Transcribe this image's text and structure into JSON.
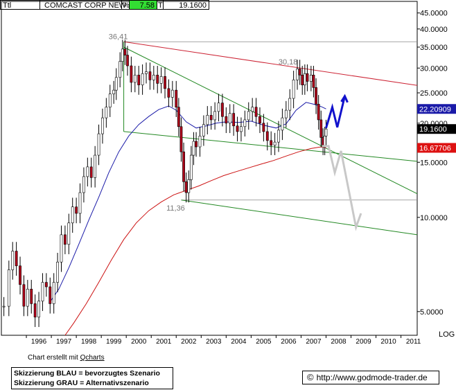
{
  "header": {
    "symbol": "Ttl",
    "name": "COMCAST CORP NEW",
    "pct_label": "%",
    "change": "7.58",
    "t_label": "T",
    "last": "19.1600"
  },
  "credit": {
    "prefix": "Chart erstellt mit ",
    "tool": "Qcharts"
  },
  "legend": {
    "line1": "Skizzierung BLAU = bevorzugtes Szenario",
    "line2": "Skizzierung GRAU = Alternativszenario"
  },
  "footer": {
    "copyright": "©",
    "url": "http://www.godmode-trader.de"
  },
  "colors": {
    "price": "#000000",
    "up_body": "#ffffff",
    "down_body": "#b0001a",
    "ma_short": "#1a1aa8",
    "ma_long": "#cc1111",
    "trend_green": "#228822",
    "resistance_red": "#cc2233",
    "scenario_blue": "#1111cc",
    "scenario_grey": "#c8c8c8",
    "label_ma_short_bg": "#1a1aa8",
    "label_ma_long_bg": "#dd1111",
    "label_last_bg": "#000000"
  },
  "chart_data": {
    "type": "line",
    "scale": "log",
    "ylim": [
      4.2,
      49
    ],
    "xlim": [
      1995.0,
      2011.65
    ],
    "y_ticks": [
      "45.0000",
      "40.0000",
      "35.0000",
      "30.0000",
      "25.0000",
      "20.0000",
      "15.0000",
      "10.0000",
      "5.0000"
    ],
    "y_tick_values": [
      45,
      40,
      35,
      30,
      25,
      20,
      15,
      10,
      5
    ],
    "x_ticks": [
      "1996",
      "1997",
      "1998",
      "1999",
      "2000",
      "2001",
      "2002",
      "2003",
      "2004",
      "2005",
      "2006",
      "2007",
      "2008",
      "2009",
      "2010",
      "2011"
    ],
    "axis_note": "LOG",
    "annotations": [
      {
        "text": "36,41",
        "x": 1999.9,
        "y": 36.41
      },
      {
        "text": "30,18",
        "x": 2006.7,
        "y": 30.18
      },
      {
        "text": "11,36",
        "x": 2002.2,
        "y": 11.36
      }
    ],
    "price_labels": [
      {
        "text": "22.20909",
        "value": 22.20909,
        "series": "ma_short"
      },
      {
        "text": "19.1600",
        "value": 19.16,
        "series": "last"
      },
      {
        "text": "16.67706",
        "value": 16.67706,
        "series": "ma_long"
      }
    ],
    "price": [
      [
        1995.1,
        5.2
      ],
      [
        1995.3,
        6.8
      ],
      [
        1995.45,
        7.8
      ],
      [
        1995.6,
        7.0
      ],
      [
        1995.75,
        6.1
      ],
      [
        1995.9,
        5.2
      ],
      [
        1996.05,
        5.9
      ],
      [
        1996.2,
        5.3
      ],
      [
        1996.35,
        4.8
      ],
      [
        1996.5,
        5.4
      ],
      [
        1996.65,
        6.2
      ],
      [
        1996.8,
        6.0
      ],
      [
        1996.95,
        5.3
      ],
      [
        1997.1,
        6.2
      ],
      [
        1997.25,
        7.2
      ],
      [
        1997.4,
        8.8
      ],
      [
        1997.55,
        8.2
      ],
      [
        1997.7,
        9.6
      ],
      [
        1997.85,
        10.8
      ],
      [
        1998.0,
        10.3
      ],
      [
        1998.15,
        12.0
      ],
      [
        1998.3,
        13.5
      ],
      [
        1998.45,
        14.5
      ],
      [
        1998.6,
        13.4
      ],
      [
        1998.75,
        15.8
      ],
      [
        1998.9,
        18.5
      ],
      [
        1999.05,
        20.8
      ],
      [
        1999.2,
        22.5
      ],
      [
        1999.35,
        24.8
      ],
      [
        1999.5,
        25.5
      ],
      [
        1999.6,
        28.0
      ],
      [
        1999.75,
        31.5
      ],
      [
        1999.85,
        34.5
      ],
      [
        1999.95,
        33.0
      ],
      [
        2000.05,
        30.5
      ],
      [
        2000.2,
        27.0
      ],
      [
        2000.35,
        28.5
      ],
      [
        2000.5,
        26.5
      ],
      [
        2000.65,
        28.8
      ],
      [
        2000.8,
        29.2
      ],
      [
        2000.95,
        27.5
      ],
      [
        2001.1,
        28.5
      ],
      [
        2001.25,
        26.8
      ],
      [
        2001.4,
        28.2
      ],
      [
        2001.55,
        25.8
      ],
      [
        2001.7,
        24.2
      ],
      [
        2001.85,
        25.5
      ],
      [
        2002.0,
        22.5
      ],
      [
        2002.1,
        19.5
      ],
      [
        2002.2,
        16.2
      ],
      [
        2002.3,
        13.0
      ],
      [
        2002.4,
        12.0
      ],
      [
        2002.5,
        13.2
      ],
      [
        2002.6,
        15.8
      ],
      [
        2002.7,
        17.5
      ],
      [
        2002.8,
        16.8
      ],
      [
        2002.95,
        18.2
      ],
      [
        2003.1,
        19.8
      ],
      [
        2003.25,
        21.2
      ],
      [
        2003.4,
        20.5
      ],
      [
        2003.55,
        21.8
      ],
      [
        2003.7,
        23.2
      ],
      [
        2003.85,
        21.0
      ],
      [
        2004.0,
        20.0
      ],
      [
        2004.15,
        21.5
      ],
      [
        2004.3,
        19.6
      ],
      [
        2004.45,
        18.8
      ],
      [
        2004.6,
        19.5
      ],
      [
        2004.75,
        20.5
      ],
      [
        2004.9,
        21.8
      ],
      [
        2005.05,
        22.5
      ],
      [
        2005.2,
        21.0
      ],
      [
        2005.35,
        20.0
      ],
      [
        2005.5,
        18.8
      ],
      [
        2005.65,
        17.6
      ],
      [
        2005.8,
        17.0
      ],
      [
        2005.95,
        17.4
      ],
      [
        2006.1,
        19.0
      ],
      [
        2006.25,
        20.8
      ],
      [
        2006.4,
        22.0
      ],
      [
        2006.55,
        24.0
      ],
      [
        2006.7,
        27.5
      ],
      [
        2006.85,
        29.8
      ],
      [
        2006.95,
        28.5
      ],
      [
        2007.05,
        26.5
      ],
      [
        2007.15,
        28.8
      ],
      [
        2007.25,
        27.2
      ],
      [
        2007.4,
        28.5
      ],
      [
        2007.5,
        26.0
      ],
      [
        2007.6,
        23.0
      ],
      [
        2007.7,
        20.5
      ],
      [
        2007.8,
        18.0
      ],
      [
        2007.88,
        17.0
      ],
      [
        2007.95,
        18.2
      ],
      [
        2008.0,
        19.16
      ]
    ],
    "ma_short": [
      [
        1996.9,
        5.3
      ],
      [
        1997.3,
        5.9
      ],
      [
        1997.7,
        6.9
      ],
      [
        1998.1,
        8.2
      ],
      [
        1998.5,
        9.8
      ],
      [
        1998.9,
        11.6
      ],
      [
        1999.3,
        13.9
      ],
      [
        1999.7,
        16.2
      ],
      [
        2000.1,
        18.2
      ],
      [
        2000.5,
        19.8
      ],
      [
        2000.9,
        21.0
      ],
      [
        2001.3,
        22.1
      ],
      [
        2001.7,
        22.7
      ],
      [
        2002.0,
        22.0
      ],
      [
        2002.4,
        20.2
      ],
      [
        2002.8,
        19.3
      ],
      [
        2003.2,
        19.6
      ],
      [
        2003.6,
        20.0
      ],
      [
        2004.0,
        20.2
      ],
      [
        2004.5,
        20.1
      ],
      [
        2005.0,
        20.3
      ],
      [
        2005.5,
        19.7
      ],
      [
        2006.0,
        19.3
      ],
      [
        2006.4,
        19.9
      ],
      [
        2006.8,
        22.0
      ],
      [
        2007.2,
        23.3
      ],
      [
        2007.5,
        23.0
      ],
      [
        2007.8,
        22.6
      ],
      [
        2008.0,
        22.21
      ]
    ],
    "ma_long": [
      [
        1997.55,
        4.2
      ],
      [
        1997.9,
        4.6
      ],
      [
        1998.4,
        5.3
      ],
      [
        1998.9,
        6.2
      ],
      [
        1999.4,
        7.3
      ],
      [
        1999.9,
        8.5
      ],
      [
        2000.4,
        9.6
      ],
      [
        2000.9,
        10.5
      ],
      [
        2001.4,
        11.2
      ],
      [
        2001.9,
        11.8
      ],
      [
        2002.4,
        12.2
      ],
      [
        2002.9,
        12.6
      ],
      [
        2003.4,
        13.1
      ],
      [
        2003.9,
        13.6
      ],
      [
        2004.4,
        14.0
      ],
      [
        2004.9,
        14.4
      ],
      [
        2005.4,
        14.8
      ],
      [
        2005.9,
        15.2
      ],
      [
        2006.4,
        15.7
      ],
      [
        2006.9,
        16.2
      ],
      [
        2007.4,
        16.6
      ],
      [
        2007.8,
        16.8
      ],
      [
        2008.0,
        16.68
      ]
    ],
    "trendlines": [
      {
        "color": "trend_green",
        "points": [
          [
            1999.9,
            35.0
          ],
          [
            2011.65,
            11.9
          ]
        ]
      },
      {
        "color": "trend_green",
        "points": [
          [
            1999.9,
            18.8
          ],
          [
            2011.65,
            15.1
          ]
        ]
      },
      {
        "color": "trend_green",
        "points": [
          [
            2002.2,
            11.36
          ],
          [
            2011.65,
            8.8
          ]
        ]
      },
      {
        "color": "resistance_red",
        "points": [
          [
            1999.9,
            36.41
          ],
          [
            2011.65,
            26.4
          ]
        ]
      }
    ],
    "reference_lines": [
      {
        "value": 36.41,
        "from": 1999.9
      },
      {
        "value": 11.36,
        "from": 2002.2
      }
    ],
    "scenario_blue": [
      [
        2008.0,
        19.3
      ],
      [
        2008.25,
        22.5
      ],
      [
        2008.45,
        19.4
      ],
      [
        2008.75,
        24.4
      ]
    ],
    "scenario_grey": [
      [
        2007.85,
        16.9
      ],
      [
        2008.1,
        16.9
      ],
      [
        2008.35,
        13.9
      ],
      [
        2008.6,
        16.3
      ],
      [
        2009.2,
        9.3
      ],
      [
        2009.4,
        10.3
      ]
    ]
  }
}
